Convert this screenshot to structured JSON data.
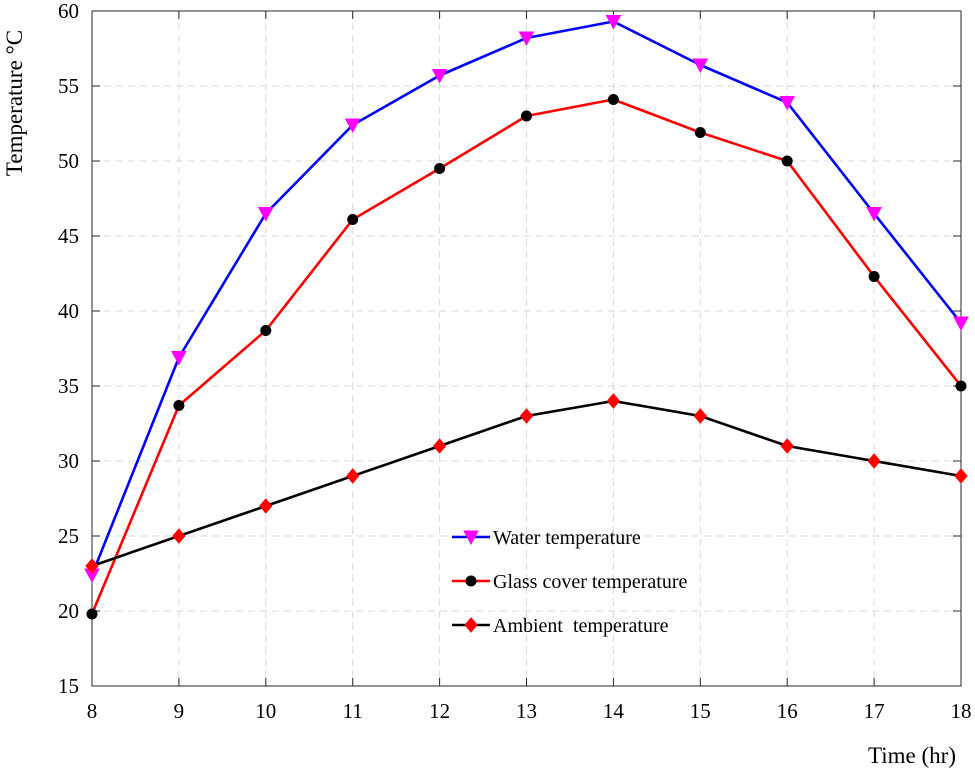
{
  "chart_data": {
    "type": "line",
    "title": "",
    "xlabel": "Time (hr)",
    "ylabel": "Temperature °C",
    "x": [
      8,
      9,
      10,
      11,
      12,
      13,
      14,
      15,
      16,
      17,
      18
    ],
    "xlim": [
      8,
      18
    ],
    "ylim": [
      15,
      60
    ],
    "xticks": [
      8,
      9,
      10,
      11,
      12,
      13,
      14,
      15,
      16,
      17,
      18
    ],
    "yticks": [
      15,
      20,
      25,
      30,
      35,
      40,
      45,
      50,
      55,
      60
    ],
    "grid": true,
    "legend_position": "bottom-center",
    "series": [
      {
        "name": "Water temperature",
        "line_color": "#0000ff",
        "marker": "triangle-down",
        "marker_color": "#ff00ff",
        "values": [
          22.4,
          36.9,
          46.5,
          52.4,
          55.7,
          58.2,
          59.3,
          56.4,
          53.9,
          46.5,
          39.2
        ]
      },
      {
        "name": "Glass cover temperature",
        "line_color": "#ff0000",
        "marker": "circle",
        "marker_color": "#000000",
        "values": [
          19.8,
          33.7,
          38.7,
          46.1,
          49.5,
          53.0,
          54.1,
          51.9,
          50.0,
          42.3,
          35.0
        ]
      },
      {
        "name": "Ambient  temperature",
        "line_color": "#000000",
        "marker": "diamond",
        "marker_color": "#ff0000",
        "values": [
          23,
          25,
          27,
          29,
          31,
          33,
          34,
          33,
          31,
          30,
          29
        ]
      }
    ]
  }
}
